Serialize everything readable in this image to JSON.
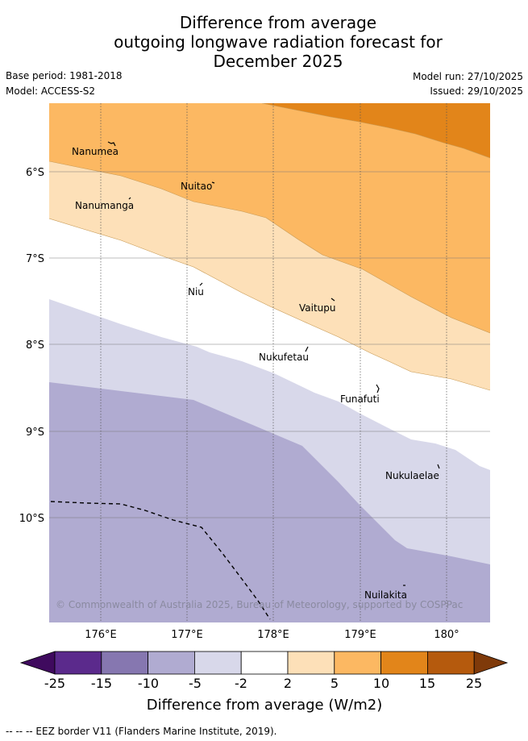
{
  "title": {
    "line1": "Difference from average",
    "line2": "outgoing longwave radiation forecast for",
    "line3": "December 2025"
  },
  "meta": {
    "base_period": "Base period: 1981-2018",
    "model": "Model: ACCESS-S2",
    "model_run": "Model run: 27/10/2025",
    "issued": "Issued: 29/10/2025"
  },
  "map": {
    "lat_labels": [
      "6°S",
      "7°S",
      "8°S",
      "9°S",
      "10°S"
    ],
    "lon_labels": [
      "176°E",
      "177°E",
      "178°E",
      "179°E",
      "180°"
    ],
    "places": [
      {
        "name": "Nanumea"
      },
      {
        "name": "Nuitao"
      },
      {
        "name": "Nanumanga"
      },
      {
        "name": "Niu"
      },
      {
        "name": "Vaitupu"
      },
      {
        "name": "Nukufetau"
      },
      {
        "name": "Funafuti"
      },
      {
        "name": "Nukulaelae"
      },
      {
        "name": "Nuilakita"
      }
    ],
    "copyright": "© Commonwealth of Australia 2025, Bureau of Meteorology, supported by COSPPac",
    "band_colors": {
      "neg_5_to_neg_10": "#b0abd1",
      "neg_2_to_neg_5": "#d8d8ea",
      "neg2_to_2": "#ffffff",
      "2_to_5": "#fde0b8",
      "5_to_10": "#fcb862",
      "10_to_15": "#e2851a"
    }
  },
  "legend": {
    "ticks": [
      "-25",
      "-15",
      "-10",
      "-5",
      "-2",
      "2",
      "5",
      "10",
      "15",
      "25"
    ],
    "colors": [
      "#3f0a5e",
      "#5b2a8c",
      "#8677b0",
      "#b0abd1",
      "#d8d8ea",
      "#ffffff",
      "#fde0b8",
      "#fcb862",
      "#e2851a",
      "#b55a0d",
      "#7f3a0a"
    ],
    "title": "Difference from average (W/m2)"
  },
  "footnote": "--  --  -- EEZ border V11 (Flanders Marine Institute, 2019)."
}
